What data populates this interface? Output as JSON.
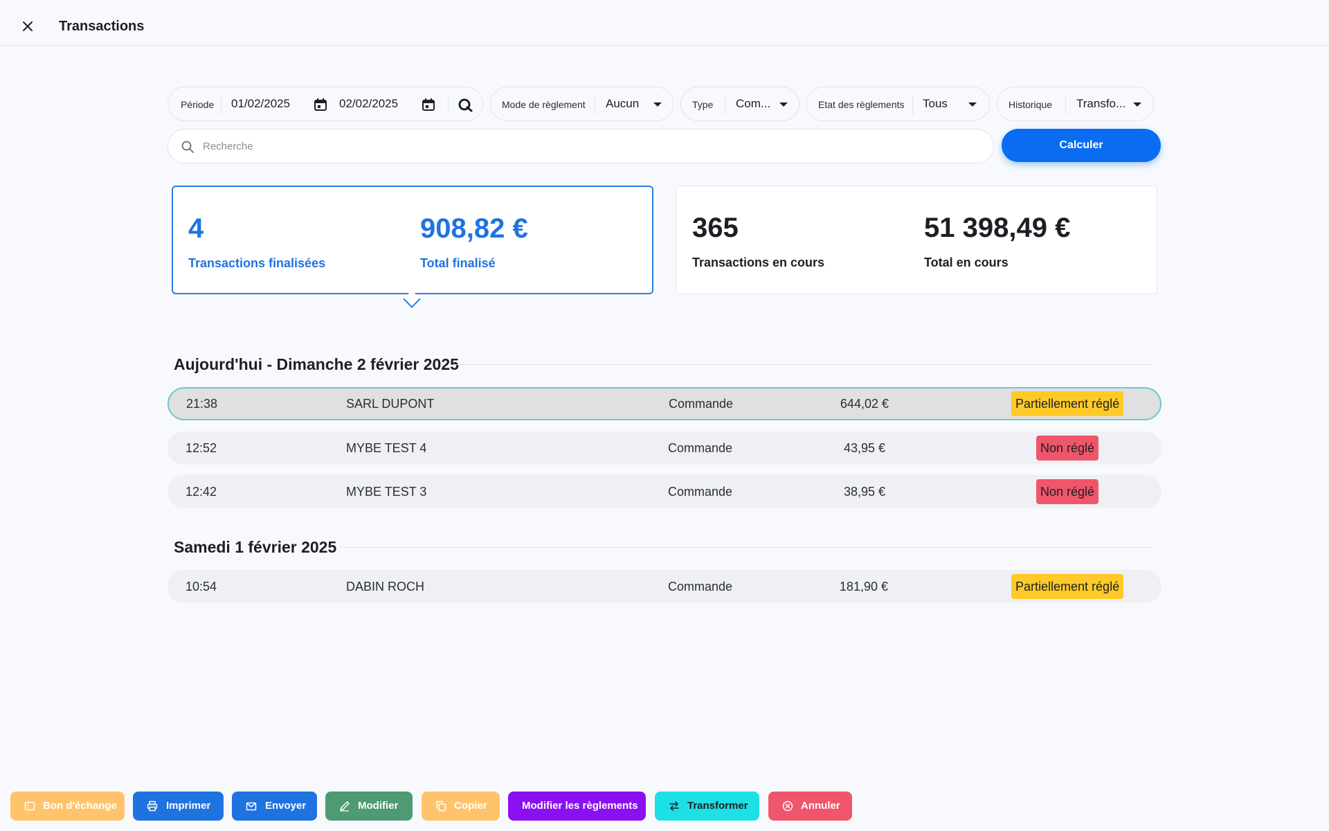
{
  "header": {
    "title": "Transactions",
    "close_icon": "close-icon"
  },
  "filters": {
    "period": {
      "label": "Période",
      "start": "01/02/2025",
      "end": "02/02/2025"
    },
    "payment_mode": {
      "label": "Mode de règlement",
      "value": "Aucun"
    },
    "type": {
      "label": "Type",
      "value": "Com..."
    },
    "payment_state": {
      "label": "Etat des règlements",
      "value": "Tous"
    },
    "history": {
      "label": "Historique",
      "value": "Transfo..."
    }
  },
  "search": {
    "placeholder": "Recherche"
  },
  "calculate_label": "Calculer",
  "summary": {
    "finalized": {
      "count": "4",
      "count_label": "Transactions finalisées",
      "total": "908,82 €",
      "total_label": "Total finalisé"
    },
    "pending": {
      "count": "365",
      "count_label": "Transactions en cours",
      "total": "51 398,49 €",
      "total_label": "Total en cours"
    }
  },
  "groups": [
    {
      "title": "Aujourd'hui - Dimanche 2 février 2025",
      "rows": [
        {
          "time": "21:38",
          "client": "SARL DUPONT",
          "type": "Commande",
          "amount": "644,02 €",
          "status": "Partiellement réglé"
        },
        {
          "time": "12:52",
          "client": "MYBE TEST 4",
          "type": "Commande",
          "amount": "43,95 €",
          "status": "Non réglé"
        },
        {
          "time": "12:42",
          "client": "MYBE TEST 3",
          "type": "Commande",
          "amount": "38,95 €",
          "status": "Non réglé"
        }
      ]
    },
    {
      "title": "Samedi 1 février 2025",
      "rows": [
        {
          "time": "10:54",
          "client": "DABIN ROCH",
          "type": "Commande",
          "amount": "181,90 €",
          "status": "Partiellement réglé"
        }
      ]
    }
  ],
  "actions": [
    {
      "label": "Bon d'échange",
      "icon": "voucher-icon",
      "color": "#ffc46b"
    },
    {
      "label": "Imprimer",
      "icon": "printer-icon",
      "color": "#1f73e0"
    },
    {
      "label": "Envoyer",
      "icon": "send-mail-icon",
      "color": "#1f73e0"
    },
    {
      "label": "Modifier",
      "icon": "pencil-icon",
      "color": "#4e9a73"
    },
    {
      "label": "Copier",
      "icon": "copy-icon",
      "color": "#ffc46b"
    },
    {
      "label": "Modifier les règlements",
      "icon": "",
      "color": "#8a10f2"
    },
    {
      "label": "Transformer",
      "icon": "transform-arrows-icon",
      "color": "#1de0e6"
    },
    {
      "label": "Annuler",
      "icon": "cancel-circle-icon",
      "color": "#f0566b"
    }
  ],
  "colors": {
    "accent": "#0a6cf2",
    "partial": "#ffc928",
    "unpaid": "#f0566b",
    "selected_border": "#6cc7d4"
  }
}
